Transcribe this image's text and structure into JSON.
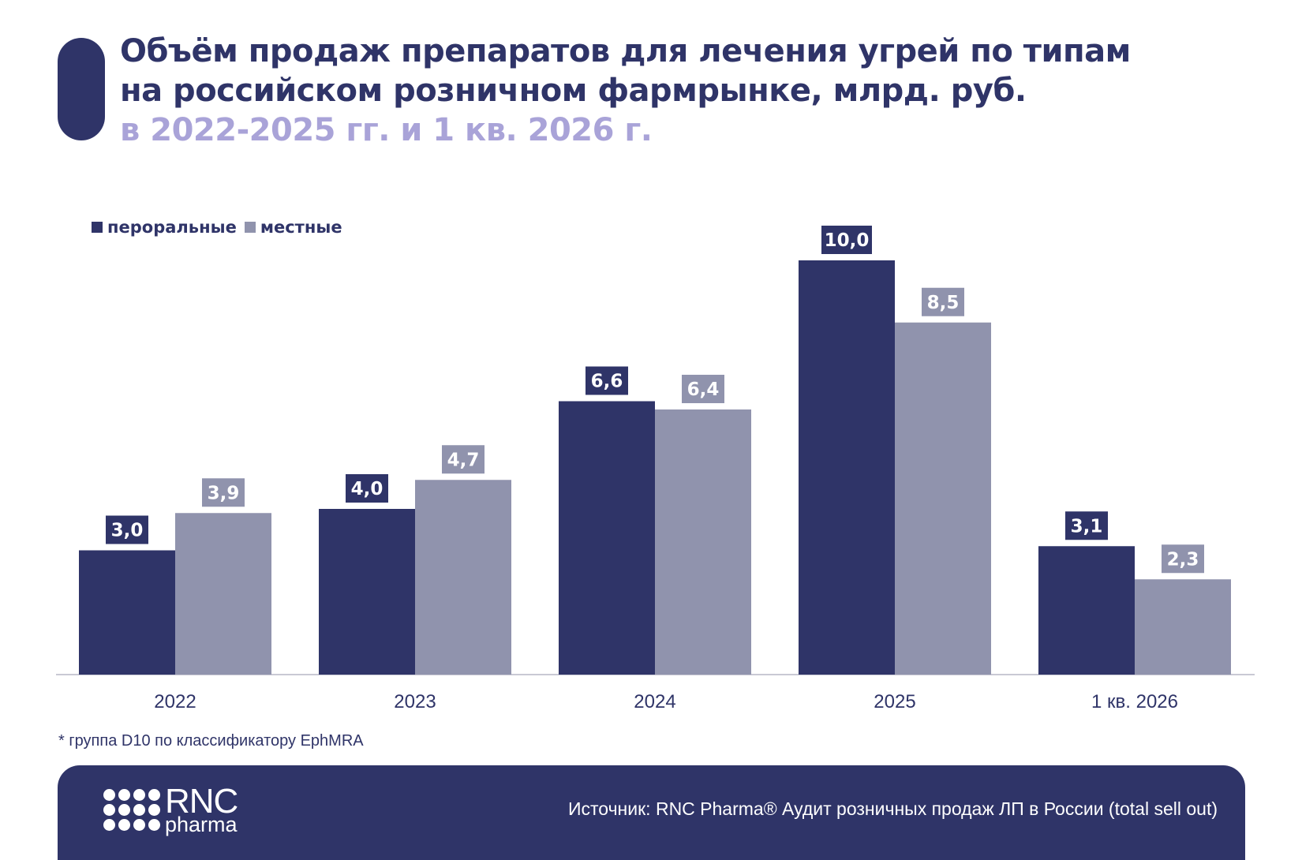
{
  "title": {
    "line1": "Объём продаж препаратов для лечения угрей по типам",
    "line2": "на российском розничном фармрынке, млрд. руб.",
    "line3": "в 2022-2025 гг. и 1 кв. 2026 г."
  },
  "legend": {
    "oral": "пероральные",
    "topical": "местные"
  },
  "colors": {
    "oral": "#2f3468",
    "topical": "#9093ad",
    "title_accent": "#a9a3d8"
  },
  "chart_data": {
    "type": "bar",
    "categories": [
      "2022",
      "2023",
      "2024",
      "2025",
      "1 кв. 2026"
    ],
    "series": [
      {
        "name": "пероральные",
        "values": [
          3.0,
          4.0,
          6.6,
          10.0,
          3.1
        ],
        "labels": [
          "3,0",
          "4,0",
          "6,6",
          "10,0",
          "3,1"
        ]
      },
      {
        "name": "местные",
        "values": [
          3.9,
          4.7,
          6.4,
          8.5,
          2.3
        ],
        "labels": [
          "3,9",
          "4,7",
          "6,4",
          "8,5",
          "2,3"
        ]
      }
    ],
    "ylim": [
      0,
      10
    ],
    "grid": false,
    "legend_position": "top-left"
  },
  "footnote": "* группа D10 по классификатору EphMRA",
  "footer": {
    "logo_big": "RNC",
    "logo_small": "pharma",
    "source": "Источник: RNC Pharma® Аудит розничных продаж ЛП в России (total sell out)"
  }
}
